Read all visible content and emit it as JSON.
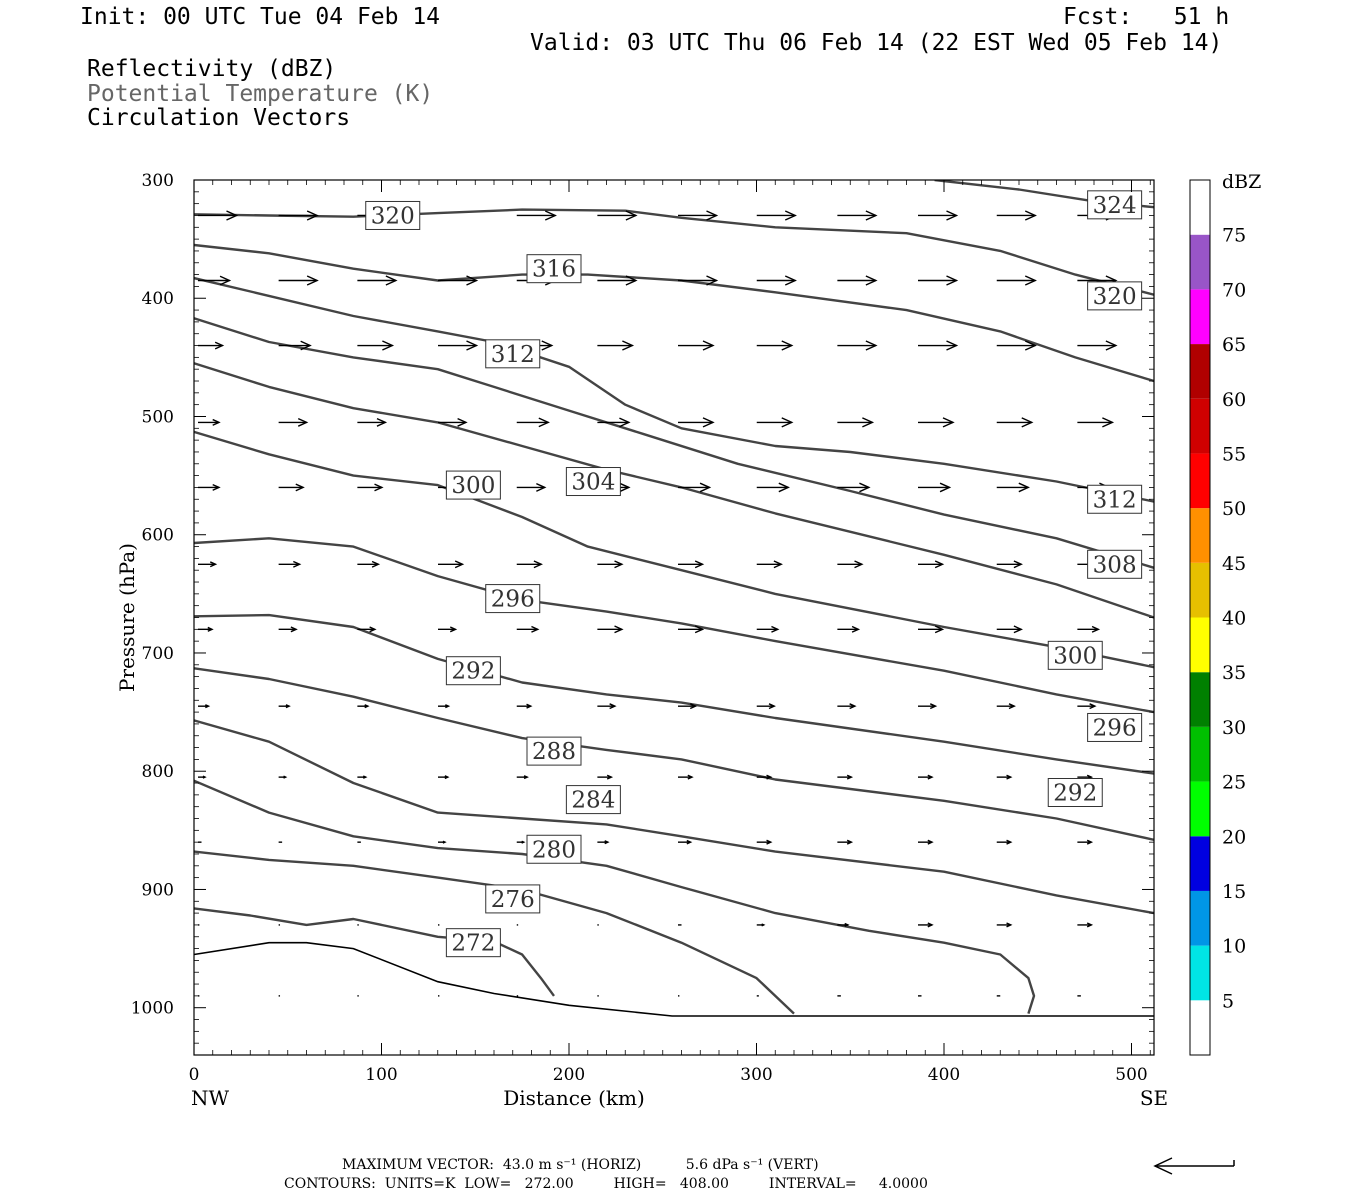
{
  "header": {
    "init": "Init: 00 UTC Tue 04 Feb 14",
    "fcst": "Fcst:   51 h",
    "valid": "Valid: 03 UTC Thu 06 Feb 14 (22 EST Wed 05 Feb 14)",
    "fields": [
      "Reflectivity (dBZ)",
      "Potential Temperature (K)",
      "Circulation Vectors"
    ],
    "colors": {
      "field_primary": "#000000",
      "field_secondary": "#666666"
    }
  },
  "footer": {
    "max_vector": "MAXIMUM VECTOR:  43.0 m s⁻¹ (HORIZ)          5.6 dPa s⁻¹ (VERT)",
    "contours": "CONTOURS:  UNITS=K  LOW=   272.00         HIGH=   408.00         INTERVAL=     4.0000"
  },
  "chart_data": {
    "type": "cross-section",
    "xlabel": "Distance (km)",
    "ylabel": "Pressure (hPa)",
    "x_end_labels": {
      "left": "NW",
      "right": "SE"
    },
    "xlim": [
      0,
      512
    ],
    "ylim": [
      300,
      1040
    ],
    "y_scale": "linear-inverted",
    "x_ticks": [
      0,
      100,
      200,
      300,
      400,
      500
    ],
    "y_ticks": [
      300,
      400,
      500,
      600,
      700,
      800,
      900,
      1000
    ],
    "grid": false,
    "line_color": "#444444",
    "surface_pressure": [
      [
        0,
        955
      ],
      [
        40,
        945
      ],
      [
        60,
        945
      ],
      [
        85,
        950
      ],
      [
        130,
        978
      ],
      [
        160,
        988
      ],
      [
        200,
        998
      ],
      [
        255,
        1007
      ],
      [
        512,
        1007
      ]
    ],
    "contours": [
      {
        "theta": 272,
        "points": [
          [
            0,
            916
          ],
          [
            30,
            922
          ],
          [
            60,
            930
          ],
          [
            85,
            925
          ],
          [
            130,
            940
          ],
          [
            160,
            944
          ],
          [
            175,
            955
          ],
          [
            185,
            975
          ],
          [
            192,
            990
          ]
        ]
      },
      {
        "theta": 276,
        "points": [
          [
            0,
            868
          ],
          [
            40,
            875
          ],
          [
            85,
            880
          ],
          [
            130,
            890
          ],
          [
            175,
            900
          ],
          [
            220,
            920
          ],
          [
            260,
            945
          ],
          [
            300,
            975
          ],
          [
            320,
            1005
          ]
        ]
      },
      {
        "theta": 280,
        "points": [
          [
            0,
            808
          ],
          [
            40,
            835
          ],
          [
            85,
            855
          ],
          [
            130,
            865
          ],
          [
            175,
            870
          ],
          [
            220,
            880
          ],
          [
            260,
            898
          ],
          [
            310,
            920
          ],
          [
            360,
            935
          ],
          [
            400,
            945
          ],
          [
            430,
            955
          ],
          [
            445,
            975
          ],
          [
            448,
            990
          ],
          [
            445,
            1005
          ]
        ]
      },
      {
        "theta": 284,
        "points": [
          [
            0,
            757
          ],
          [
            40,
            775
          ],
          [
            85,
            810
          ],
          [
            130,
            835
          ],
          [
            175,
            840
          ],
          [
            220,
            845
          ],
          [
            260,
            855
          ],
          [
            310,
            868
          ],
          [
            400,
            885
          ],
          [
            460,
            905
          ],
          [
            512,
            920
          ]
        ]
      },
      {
        "theta": 288,
        "points": [
          [
            0,
            713
          ],
          [
            40,
            722
          ],
          [
            85,
            737
          ],
          [
            130,
            755
          ],
          [
            175,
            772
          ],
          [
            220,
            782
          ],
          [
            260,
            790
          ],
          [
            310,
            807
          ],
          [
            400,
            825
          ],
          [
            460,
            840
          ],
          [
            512,
            858
          ]
        ]
      },
      {
        "theta": 292,
        "points": [
          [
            0,
            669
          ],
          [
            40,
            668
          ],
          [
            85,
            678
          ],
          [
            130,
            705
          ],
          [
            175,
            725
          ],
          [
            220,
            735
          ],
          [
            260,
            742
          ],
          [
            310,
            755
          ],
          [
            400,
            775
          ],
          [
            460,
            790
          ],
          [
            512,
            802
          ]
        ]
      },
      {
        "theta": 296,
        "points": [
          [
            0,
            607
          ],
          [
            40,
            603
          ],
          [
            85,
            610
          ],
          [
            130,
            635
          ],
          [
            175,
            655
          ],
          [
            220,
            665
          ],
          [
            260,
            675
          ],
          [
            310,
            690
          ],
          [
            400,
            715
          ],
          [
            460,
            735
          ],
          [
            512,
            750
          ]
        ]
      },
      {
        "theta": 300,
        "points": [
          [
            0,
            513
          ],
          [
            40,
            532
          ],
          [
            85,
            550
          ],
          [
            130,
            558
          ],
          [
            175,
            585
          ],
          [
            210,
            610
          ],
          [
            260,
            630
          ],
          [
            310,
            650
          ],
          [
            400,
            678
          ],
          [
            460,
            695
          ],
          [
            512,
            712
          ]
        ]
      },
      {
        "theta": 304,
        "points": [
          [
            0,
            455
          ],
          [
            40,
            475
          ],
          [
            85,
            493
          ],
          [
            130,
            505
          ],
          [
            175,
            525
          ],
          [
            220,
            545
          ],
          [
            260,
            560
          ],
          [
            310,
            582
          ],
          [
            400,
            617
          ],
          [
            460,
            642
          ],
          [
            512,
            670
          ]
        ]
      },
      {
        "theta": 308,
        "points": [
          [
            0,
            417
          ],
          [
            40,
            437
          ],
          [
            85,
            450
          ],
          [
            130,
            460
          ],
          [
            160,
            475
          ],
          [
            200,
            495
          ],
          [
            240,
            515
          ],
          [
            290,
            540
          ],
          [
            350,
            563
          ],
          [
            400,
            583
          ],
          [
            460,
            603
          ],
          [
            512,
            628
          ]
        ]
      },
      {
        "theta": 312,
        "points": [
          [
            0,
            383
          ],
          [
            40,
            398
          ],
          [
            85,
            415
          ],
          [
            130,
            428
          ],
          [
            160,
            437
          ],
          [
            200,
            458
          ],
          [
            230,
            490
          ],
          [
            260,
            510
          ],
          [
            310,
            525
          ],
          [
            350,
            530
          ],
          [
            400,
            540
          ],
          [
            460,
            555
          ],
          [
            512,
            572
          ]
        ]
      },
      {
        "theta": 316,
        "points": [
          [
            0,
            355
          ],
          [
            40,
            362
          ],
          [
            85,
            375
          ],
          [
            130,
            385
          ],
          [
            175,
            380
          ],
          [
            210,
            380
          ],
          [
            260,
            385
          ],
          [
            310,
            395
          ],
          [
            380,
            410
          ],
          [
            430,
            428
          ],
          [
            470,
            450
          ],
          [
            512,
            470
          ]
        ]
      },
      {
        "theta": 320,
        "points": [
          [
            0,
            329
          ],
          [
            40,
            330
          ],
          [
            85,
            331
          ],
          [
            130,
            328
          ],
          [
            175,
            325
          ],
          [
            230,
            326
          ],
          [
            260,
            332
          ],
          [
            310,
            340
          ],
          [
            380,
            345
          ],
          [
            430,
            360
          ],
          [
            470,
            380
          ],
          [
            512,
            397
          ]
        ]
      },
      {
        "theta": 324,
        "points": [
          [
            395,
            300
          ],
          [
            440,
            308
          ],
          [
            480,
            318
          ],
          [
            512,
            323
          ]
        ]
      }
    ],
    "contour_labels": [
      {
        "theta": 272,
        "x": 149,
        "p": 945
      },
      {
        "theta": 276,
        "x": 170,
        "p": 908
      },
      {
        "theta": 280,
        "x": 192,
        "p": 866
      },
      {
        "theta": 284,
        "x": 213,
        "p": 824
      },
      {
        "theta": 288,
        "x": 192,
        "p": 783
      },
      {
        "theta": 292,
        "x": 149,
        "p": 715
      },
      {
        "theta": 296,
        "x": 170,
        "p": 654
      },
      {
        "theta": 300,
        "x": 149,
        "p": 558
      },
      {
        "theta": 304,
        "x": 213,
        "p": 555
      },
      {
        "theta": 308,
        "x": 491,
        "p": 625
      },
      {
        "theta": 312,
        "x": 170,
        "p": 447
      },
      {
        "theta": 316,
        "x": 192,
        "p": 375
      },
      {
        "theta": 320,
        "x": 106,
        "p": 330
      },
      {
        "theta": 312,
        "x": 491,
        "p": 570
      },
      {
        "theta": 300,
        "x": 470,
        "p": 702
      },
      {
        "theta": 296,
        "x": 491,
        "p": 763
      },
      {
        "theta": 292,
        "x": 470,
        "p": 818
      },
      {
        "theta": 320,
        "x": 491,
        "p": 398
      },
      {
        "theta": 324,
        "x": 491,
        "p": 321
      }
    ],
    "vectors": {
      "x_cols": [
        0,
        43,
        85,
        128,
        170,
        213,
        256,
        298,
        341,
        384,
        426,
        469,
        512
      ],
      "rows": [
        {
          "p": 330,
          "u": [
            0.55,
            0.55,
            0.55,
            0.0,
            0.55,
            0.55,
            0.55,
            0.55,
            0.55,
            0.55,
            0.55,
            0.55,
            0.55
          ]
        },
        {
          "p": 385,
          "u": [
            0.45,
            0.55,
            0.55,
            0.55,
            0.55,
            0.55,
            0.55,
            0.55,
            0.55,
            0.55,
            0.55,
            0.55,
            0.55
          ]
        },
        {
          "p": 440,
          "u": [
            0.35,
            0.45,
            0.5,
            0.55,
            0.5,
            0.5,
            0.5,
            0.5,
            0.55,
            0.55,
            0.55,
            0.55,
            0.55
          ]
        },
        {
          "p": 505,
          "u": [
            0.3,
            0.4,
            0.4,
            0.4,
            0.45,
            0.45,
            0.5,
            0.5,
            0.5,
            0.5,
            0.5,
            0.5,
            0.5
          ]
        },
        {
          "p": 560,
          "u": [
            0.3,
            0.35,
            0.35,
            0.4,
            0.4,
            0.45,
            0.45,
            0.45,
            0.45,
            0.45,
            0.45,
            0.45,
            0.45
          ]
        },
        {
          "p": 625,
          "u": [
            0.25,
            0.3,
            0.3,
            0.35,
            0.35,
            0.35,
            0.35,
            0.35,
            0.35,
            0.35,
            0.35,
            0.35,
            0.35
          ]
        },
        {
          "p": 680,
          "u": [
            0.2,
            0.25,
            0.25,
            0.25,
            0.3,
            0.35,
            0.35,
            0.3,
            0.3,
            0.35,
            0.35,
            0.3,
            0.3
          ]
        },
        {
          "p": 745,
          "u": [
            0.15,
            0.15,
            0.15,
            0.15,
            0.2,
            0.25,
            0.25,
            0.25,
            0.25,
            0.25,
            0.25,
            0.25,
            0.25
          ]
        },
        {
          "p": 805,
          "u": [
            0.1,
            0.1,
            0.12,
            0.14,
            0.15,
            0.2,
            0.2,
            0.2,
            0.2,
            0.2,
            0.2,
            0.2,
            0.2
          ]
        },
        {
          "p": 860,
          "u": [
            0.05,
            0.05,
            0.05,
            0.1,
            0.1,
            0.15,
            0.18,
            0.2,
            0.2,
            0.2,
            0.2,
            0.2,
            0.2
          ]
        },
        {
          "p": 930,
          "u": [
            0.02,
            0.02,
            0.02,
            0.02,
            0.02,
            0.02,
            0.05,
            0.1,
            0.15,
            0.2,
            0.2,
            0.2,
            0.2
          ]
        },
        {
          "p": 990,
          "u": [
            0.02,
            0.02,
            0.02,
            0.02,
            0.02,
            0.02,
            0.02,
            0.03,
            0.05,
            0.05,
            0.05,
            0.05,
            0.05
          ]
        }
      ]
    },
    "colorbar": {
      "title": "dBZ",
      "labels": [
        "5",
        "10",
        "15",
        "20",
        "25",
        "30",
        "35",
        "40",
        "45",
        "50",
        "55",
        "60",
        "65",
        "70",
        "75"
      ],
      "colors": [
        "#ffffff",
        "#00e5e5",
        "#0096e6",
        "#0000e0",
        "#00ff00",
        "#00c000",
        "#008000",
        "#ffff00",
        "#e6c000",
        "#ff9000",
        "#ff0000",
        "#d00000",
        "#b00000",
        "#ff00ff",
        "#9955c8",
        "#ffffff"
      ]
    },
    "reference_vector": {
      "direction": "left"
    }
  }
}
